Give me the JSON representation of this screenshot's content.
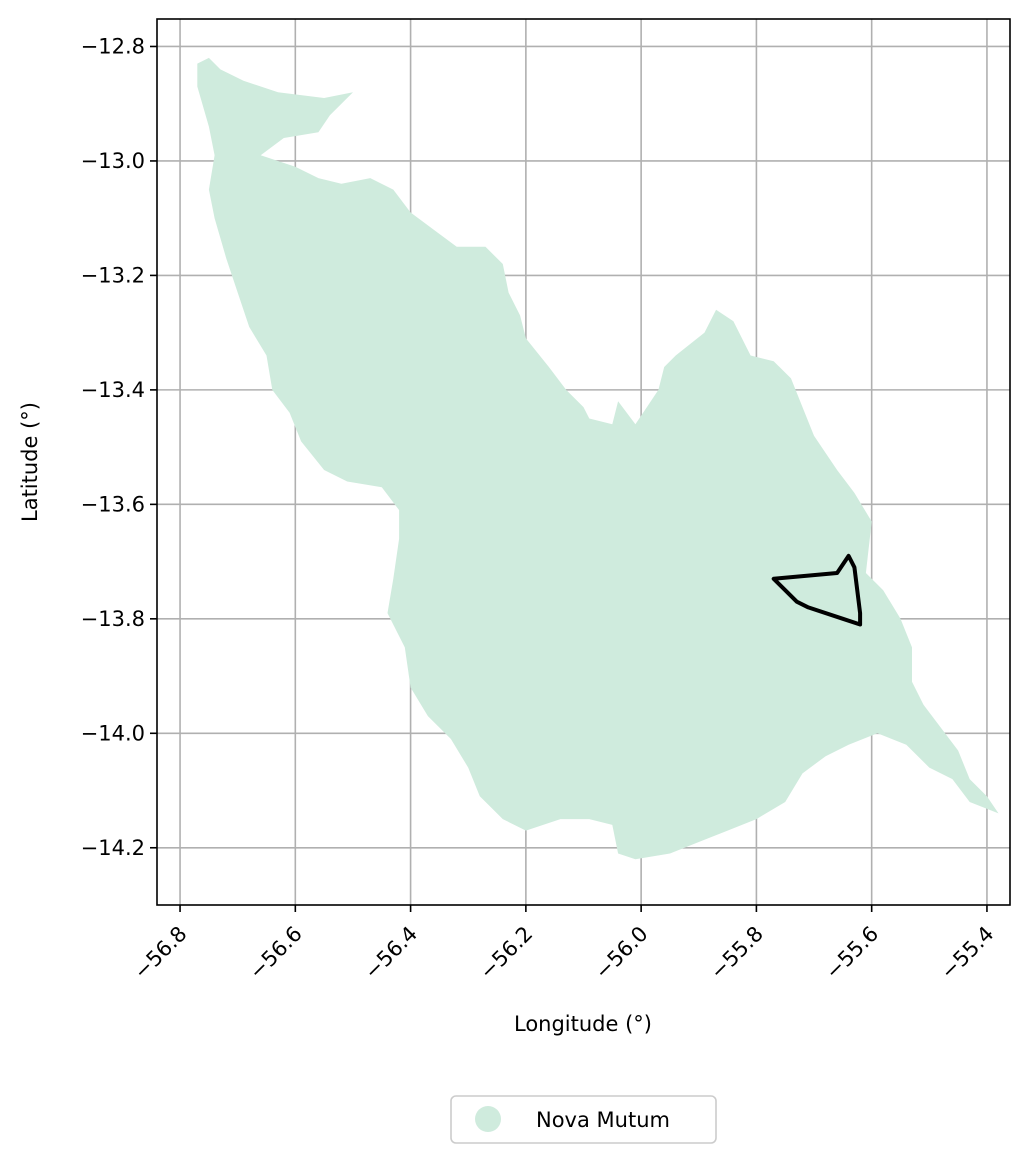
{
  "chart_data": {
    "type": "map",
    "xlabel": "Longitude (°)",
    "ylabel": "Latitude (°)",
    "xlim": [
      -56.84,
      -55.36
    ],
    "ylim": [
      -14.3,
      -12.752
    ],
    "grid": true,
    "x_ticks": [
      {
        "value": -56.8,
        "label": "−56.8"
      },
      {
        "value": -56.6,
        "label": "−56.6"
      },
      {
        "value": -56.4,
        "label": "−56.4"
      },
      {
        "value": -56.2,
        "label": "−56.2"
      },
      {
        "value": -56.0,
        "label": "−56.0"
      },
      {
        "value": -55.8,
        "label": "−55.8"
      },
      {
        "value": -55.6,
        "label": "−55.6"
      },
      {
        "value": -55.4,
        "label": "−55.4"
      }
    ],
    "y_ticks": [
      {
        "value": -12.8,
        "label": "−12.8"
      },
      {
        "value": -13.0,
        "label": "−13.0"
      },
      {
        "value": -13.2,
        "label": "−13.2"
      },
      {
        "value": -13.4,
        "label": "−13.4"
      },
      {
        "value": -13.6,
        "label": "−13.6"
      },
      {
        "value": -13.8,
        "label": "−13.8"
      },
      {
        "value": -14.0,
        "label": "−14.0"
      },
      {
        "value": -14.2,
        "label": "−14.2"
      }
    ],
    "legend": {
      "placement": "bottom-center",
      "label": "Nova Mutum",
      "color": "#cfebdd"
    },
    "municipality": {
      "name": "Nova Mutum",
      "color": "#cfebdd",
      "boundary": [
        [
          -56.77,
          -12.83
        ],
        [
          -56.75,
          -12.82
        ],
        [
          -56.73,
          -12.84
        ],
        [
          -56.69,
          -12.86
        ],
        [
          -56.63,
          -12.88
        ],
        [
          -56.55,
          -12.89
        ],
        [
          -56.5,
          -12.88
        ],
        [
          -56.54,
          -12.92
        ],
        [
          -56.56,
          -12.95
        ],
        [
          -56.62,
          -12.96
        ],
        [
          -56.66,
          -12.99
        ],
        [
          -56.6,
          -13.01
        ],
        [
          -56.56,
          -13.03
        ],
        [
          -56.52,
          -13.04
        ],
        [
          -56.47,
          -13.03
        ],
        [
          -56.43,
          -13.05
        ],
        [
          -56.4,
          -13.09
        ],
        [
          -56.36,
          -13.12
        ],
        [
          -56.32,
          -13.15
        ],
        [
          -56.27,
          -13.15
        ],
        [
          -56.24,
          -13.18
        ],
        [
          -56.23,
          -13.23
        ],
        [
          -56.21,
          -13.27
        ],
        [
          -56.2,
          -13.31
        ],
        [
          -56.16,
          -13.36
        ],
        [
          -56.13,
          -13.4
        ],
        [
          -56.1,
          -13.43
        ],
        [
          -56.09,
          -13.45
        ],
        [
          -56.05,
          -13.46
        ],
        [
          -56.04,
          -13.42
        ],
        [
          -56.01,
          -13.46
        ],
        [
          -55.99,
          -13.43
        ],
        [
          -55.97,
          -13.4
        ],
        [
          -55.96,
          -13.36
        ],
        [
          -55.94,
          -13.34
        ],
        [
          -55.89,
          -13.3
        ],
        [
          -55.87,
          -13.26
        ],
        [
          -55.84,
          -13.28
        ],
        [
          -55.81,
          -13.34
        ],
        [
          -55.77,
          -13.35
        ],
        [
          -55.74,
          -13.38
        ],
        [
          -55.72,
          -13.43
        ],
        [
          -55.7,
          -13.48
        ],
        [
          -55.66,
          -13.54
        ],
        [
          -55.63,
          -13.58
        ],
        [
          -55.6,
          -13.63
        ],
        [
          -55.61,
          -13.72
        ],
        [
          -55.58,
          -13.75
        ],
        [
          -55.55,
          -13.8
        ],
        [
          -55.53,
          -13.85
        ],
        [
          -55.53,
          -13.91
        ],
        [
          -55.51,
          -13.95
        ],
        [
          -55.48,
          -13.99
        ],
        [
          -55.45,
          -14.03
        ],
        [
          -55.43,
          -14.08
        ],
        [
          -55.4,
          -14.11
        ],
        [
          -55.38,
          -14.14
        ],
        [
          -55.43,
          -14.12
        ],
        [
          -55.46,
          -14.08
        ],
        [
          -55.5,
          -14.06
        ],
        [
          -55.54,
          -14.02
        ],
        [
          -55.59,
          -14.0
        ],
        [
          -55.64,
          -14.02
        ],
        [
          -55.68,
          -14.04
        ],
        [
          -55.72,
          -14.07
        ],
        [
          -55.75,
          -14.12
        ],
        [
          -55.8,
          -14.15
        ],
        [
          -55.85,
          -14.17
        ],
        [
          -55.9,
          -14.19
        ],
        [
          -55.95,
          -14.21
        ],
        [
          -56.01,
          -14.22
        ],
        [
          -56.04,
          -14.21
        ],
        [
          -56.05,
          -14.16
        ],
        [
          -56.09,
          -14.15
        ],
        [
          -56.14,
          -14.15
        ],
        [
          -56.2,
          -14.17
        ],
        [
          -56.24,
          -14.15
        ],
        [
          -56.28,
          -14.11
        ],
        [
          -56.3,
          -14.06
        ],
        [
          -56.33,
          -14.01
        ],
        [
          -56.37,
          -13.97
        ],
        [
          -56.4,
          -13.92
        ],
        [
          -56.41,
          -13.85
        ],
        [
          -56.44,
          -13.79
        ],
        [
          -56.43,
          -13.73
        ],
        [
          -56.42,
          -13.66
        ],
        [
          -56.42,
          -13.61
        ],
        [
          -56.45,
          -13.57
        ],
        [
          -56.51,
          -13.56
        ],
        [
          -56.55,
          -13.54
        ],
        [
          -56.59,
          -13.49
        ],
        [
          -56.61,
          -13.44
        ],
        [
          -56.64,
          -13.4
        ],
        [
          -56.65,
          -13.34
        ],
        [
          -56.68,
          -13.29
        ],
        [
          -56.7,
          -13.23
        ],
        [
          -56.72,
          -13.17
        ],
        [
          -56.74,
          -13.1
        ],
        [
          -56.75,
          -13.05
        ],
        [
          -56.74,
          -12.99
        ],
        [
          -56.75,
          -12.94
        ],
        [
          -56.77,
          -12.87
        ]
      ]
    },
    "area_outline": {
      "stroke": "#000000",
      "boundary": [
        [
          -55.77,
          -13.73
        ],
        [
          -55.66,
          -13.72
        ],
        [
          -55.64,
          -13.69
        ],
        [
          -55.63,
          -13.71
        ],
        [
          -55.62,
          -13.79
        ],
        [
          -55.62,
          -13.81
        ],
        [
          -55.65,
          -13.8
        ],
        [
          -55.71,
          -13.78
        ],
        [
          -55.73,
          -13.77
        ],
        [
          -55.75,
          -13.75
        ]
      ]
    }
  }
}
